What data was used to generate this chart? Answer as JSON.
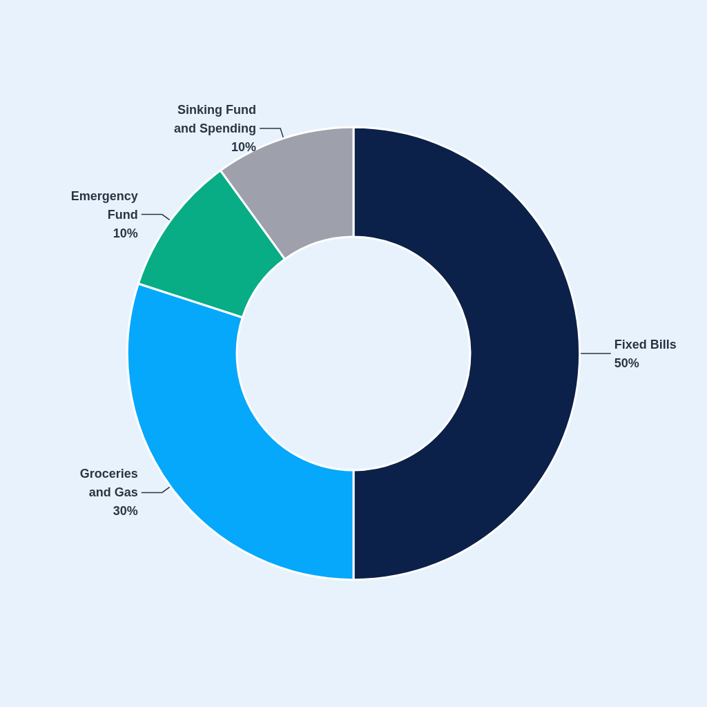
{
  "chart_data": {
    "type": "donut",
    "categories": [
      "Fixed Bills",
      "Groceries and Gas",
      "Emergency Fund",
      "Sinking Fund and Spending"
    ],
    "values": [
      50,
      30,
      10,
      10
    ],
    "colors": [
      "#0b2149",
      "#06a8fc",
      "#08ad85",
      "#9ea1ab"
    ],
    "value_labels": [
      "50%",
      "30%",
      "10%",
      "10%"
    ],
    "legend": false
  }
}
